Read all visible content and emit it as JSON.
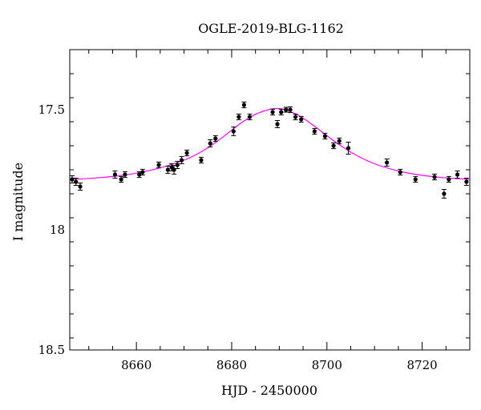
{
  "chart_data": {
    "type": "scatter",
    "title": "OGLE-2019-BLG-1162",
    "xlabel": "HJD - 2450000",
    "ylabel": "I magnitude",
    "xlim": [
      8646,
      8730
    ],
    "ylim": [
      18.5,
      17.25
    ],
    "y_inverted": true,
    "grid": false,
    "x_major_ticks": [
      8660,
      8680,
      8700,
      8720
    ],
    "x_minor_step": 5,
    "y_major_ticks": [
      17.5,
      18,
      18.5
    ],
    "y_minor_step": 0.1,
    "colors": {
      "points": "#000000",
      "model": "#ff00ff"
    },
    "series": [
      {
        "kind": "points-with-errors",
        "x": [
          8646.5,
          8647.3,
          8648.2,
          8655.5,
          8656.8,
          8657.6,
          8660.6,
          8661.3,
          8664.7,
          8666.6,
          8667.4,
          8667.9,
          8668.6,
          8669.5,
          8670.6,
          8673.6,
          8675.5,
          8676.6,
          8680.4,
          8681.5,
          8682.6,
          8683.8,
          8688.6,
          8689.6,
          8690.4,
          8691.4,
          8692.3,
          8693.4,
          8694.6,
          8697.4,
          8699.6,
          8701.4,
          8702.6,
          8704.5,
          8712.6,
          8715.4,
          8718.6,
          8722.6,
          8724.6,
          8725.6,
          8727.4,
          8729.3
        ],
        "y": [
          17.79,
          17.8,
          17.82,
          17.77,
          17.79,
          17.77,
          17.77,
          17.76,
          17.73,
          17.75,
          17.74,
          17.75,
          17.73,
          17.71,
          17.68,
          17.71,
          17.64,
          17.62,
          17.59,
          17.53,
          17.48,
          17.53,
          17.51,
          17.56,
          17.51,
          17.5,
          17.5,
          17.53,
          17.54,
          17.59,
          17.61,
          17.65,
          17.63,
          17.66,
          17.72,
          17.76,
          17.79,
          17.78,
          17.85,
          17.79,
          17.77,
          17.8
        ],
        "yerr": [
          0.015,
          0.015,
          0.015,
          0.015,
          0.012,
          0.012,
          0.012,
          0.012,
          0.012,
          0.015,
          0.015,
          0.018,
          0.015,
          0.015,
          0.012,
          0.012,
          0.015,
          0.012,
          0.018,
          0.012,
          0.012,
          0.012,
          0.012,
          0.015,
          0.012,
          0.01,
          0.012,
          0.012,
          0.012,
          0.012,
          0.012,
          0.012,
          0.012,
          0.025,
          0.015,
          0.012,
          0.012,
          0.012,
          0.018,
          0.012,
          0.015,
          0.015
        ]
      },
      {
        "kind": "model-curve",
        "x": [
          8646,
          8650,
          8655,
          8660,
          8665,
          8670,
          8673,
          8676,
          8679,
          8682,
          8685,
          8688,
          8689.5,
          8691,
          8694,
          8697,
          8700,
          8703,
          8706,
          8710,
          8715,
          8720,
          8725,
          8730
        ],
        "y": [
          17.79,
          17.786,
          17.778,
          17.764,
          17.742,
          17.71,
          17.682,
          17.645,
          17.601,
          17.555,
          17.519,
          17.498,
          17.495,
          17.499,
          17.523,
          17.563,
          17.608,
          17.651,
          17.688,
          17.725,
          17.755,
          17.773,
          17.784,
          17.79
        ]
      }
    ]
  }
}
